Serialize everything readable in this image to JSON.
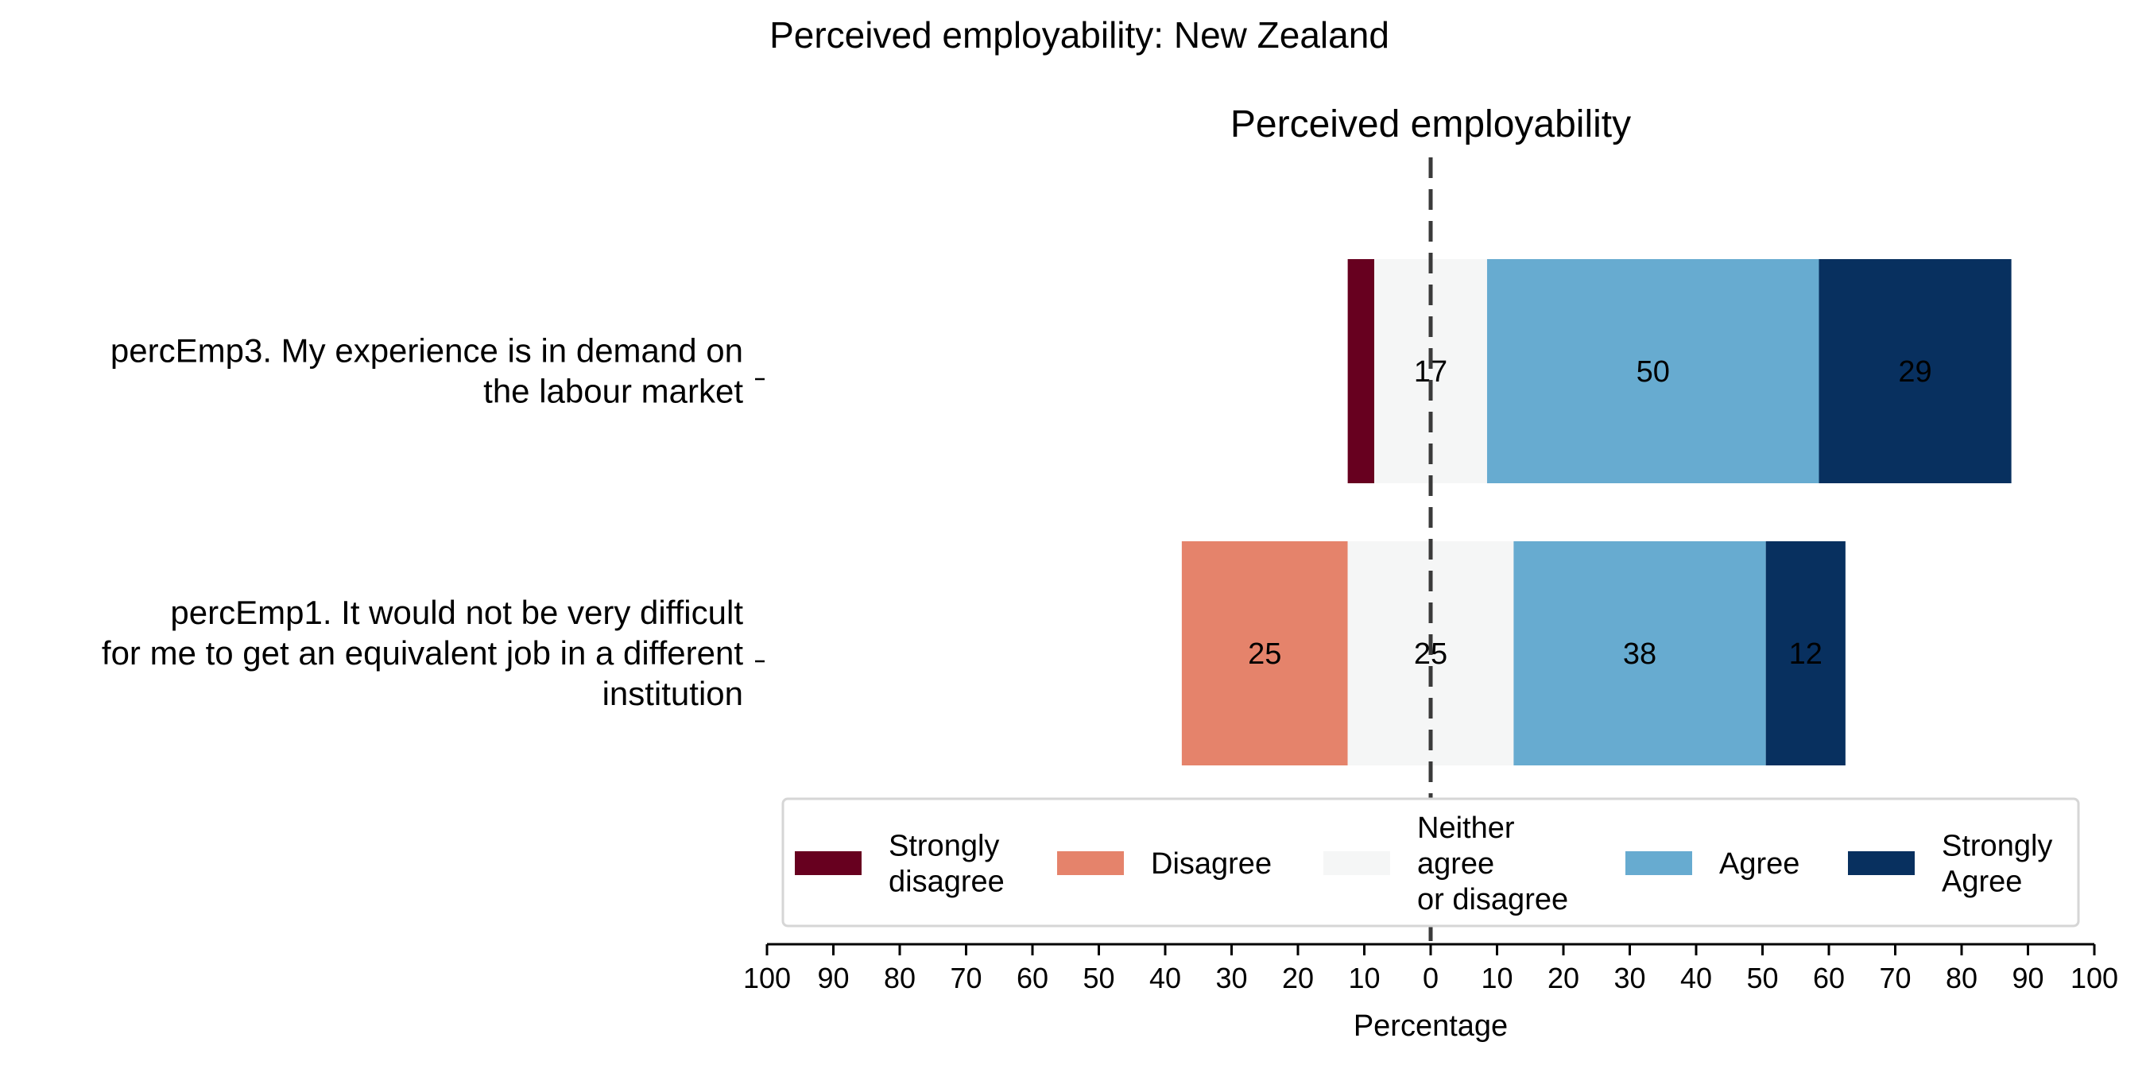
{
  "chart_data": {
    "type": "bar",
    "orientation": "horizontal",
    "stacked": "diverging",
    "title": "Perceived employability: New Zealand",
    "subtitle": "Perceived employability",
    "xlabel": "Percentage",
    "ylabel": "",
    "xlim": [
      -100,
      100
    ],
    "xticks": [
      -100,
      -90,
      -80,
      -70,
      -60,
      -50,
      -40,
      -30,
      -20,
      -10,
      0,
      10,
      20,
      30,
      40,
      50,
      60,
      70,
      80,
      90,
      100
    ],
    "xtick_labels": [
      "100",
      "90",
      "80",
      "70",
      "60",
      "50",
      "40",
      "30",
      "20",
      "10",
      "0",
      "10",
      "20",
      "30",
      "40",
      "50",
      "60",
      "70",
      "80",
      "90",
      "100"
    ],
    "grid": false,
    "legend_position": "bottom-inside",
    "categories": [
      "percEmp3. My experience is in demand on the labour market",
      "percEmp1. It would not be very difficult for me to get an equivalent job in a different institution"
    ],
    "category_lines": [
      [
        "percEmp3. My experience is in demand on",
        "the labour market"
      ],
      [
        "percEmp1. It would not be very difficult",
        "for me to get an equivalent job in a different",
        "institution"
      ]
    ],
    "series": [
      {
        "name": "Strongly disagree",
        "legend_lines": [
          "Strongly",
          "disagree"
        ],
        "color": "#67001f",
        "values": [
          4,
          0
        ],
        "labels": [
          "",
          ""
        ]
      },
      {
        "name": "Disagree",
        "legend_lines": [
          "Disagree"
        ],
        "color": "#e5836b",
        "values": [
          0,
          25
        ],
        "labels": [
          "",
          "25"
        ]
      },
      {
        "name": "Neither agree or disagree",
        "legend_lines": [
          "Neither",
          "agree",
          "or disagree"
        ],
        "color": "#f5f6f6",
        "values": [
          17,
          25
        ],
        "labels": [
          "17",
          "25"
        ]
      },
      {
        "name": "Agree",
        "legend_lines": [
          "Agree"
        ],
        "color": "#67abd0",
        "values": [
          50,
          38
        ],
        "labels": [
          "50",
          "38"
        ]
      },
      {
        "name": "Strongly Agree",
        "legend_lines": [
          "Strongly",
          "Agree"
        ],
        "color": "#08305f",
        "values": [
          29,
          12
        ],
        "labels": [
          "29",
          "12"
        ]
      }
    ]
  }
}
